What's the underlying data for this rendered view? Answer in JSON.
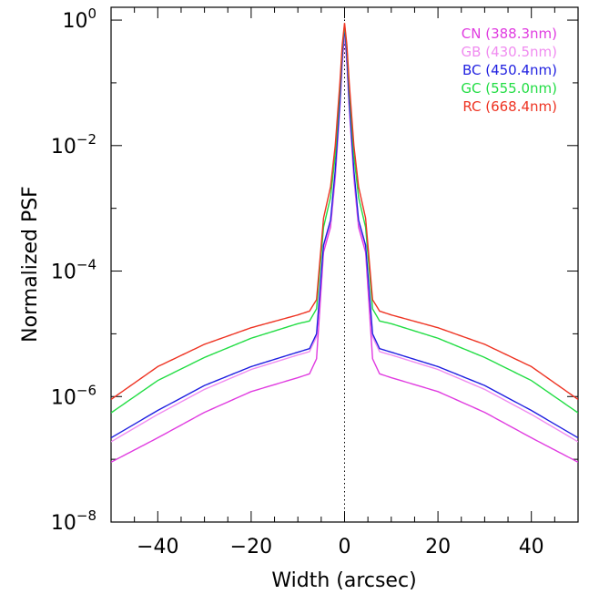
{
  "chart_data": {
    "type": "line",
    "title": "",
    "xlabel": "Width (arcsec)",
    "ylabel": "Normalized PSF",
    "xlim": [
      -50,
      50
    ],
    "ylim": [
      1e-08,
      1.6
    ],
    "yscale": "log",
    "grid": false,
    "legend_position": "top-right",
    "x_ticks": [
      -40,
      -20,
      0,
      20,
      40
    ],
    "x_tick_labels": [
      "−40",
      "−20",
      "0",
      "20",
      "40"
    ],
    "y_ticks": [
      1e-08,
      1e-06,
      0.0001,
      0.01,
      1
    ],
    "y_tick_labels": [
      {
        "base": "10",
        "exp": "−8"
      },
      {
        "base": "10",
        "exp": "−6"
      },
      {
        "base": "10",
        "exp": "−4"
      },
      {
        "base": "10",
        "exp": "−2"
      },
      {
        "base": "10",
        "exp": "0"
      }
    ],
    "center_line": {
      "x": 0,
      "style": "dotted"
    },
    "series": [
      {
        "name": "CN (388.3nm)",
        "color": "#e03ce0",
        "x": [
          -50,
          -40,
          -30,
          -20,
          -10,
          -7.5,
          -6,
          -4.5,
          -3,
          -2,
          -1,
          -0.5,
          0,
          0.5,
          1,
          2,
          3,
          4.5,
          6,
          7.5,
          10,
          20,
          30,
          40,
          50
        ],
        "y": [
          9e-08,
          2.2e-07,
          5.6e-07,
          1.2e-06,
          2e-06,
          2.3e-06,
          4e-06,
          0.0002,
          0.0005,
          0.003,
          0.04,
          0.2,
          0.65,
          0.2,
          0.04,
          0.003,
          0.0005,
          0.0002,
          4e-06,
          2.3e-06,
          2e-06,
          1.2e-06,
          5.6e-07,
          2.2e-07,
          9e-08
        ]
      },
      {
        "name": "GB (430.5nm)",
        "color": "#f08cf0",
        "x": [
          -50,
          -40,
          -30,
          -20,
          -10,
          -7.5,
          -6,
          -4.5,
          -3,
          -2,
          -1,
          -0.5,
          0,
          0.5,
          1,
          2,
          3,
          4.5,
          6,
          7.5,
          10,
          20,
          30,
          40,
          50
        ],
        "y": [
          1.9e-07,
          5.2e-07,
          1.3e-06,
          2.7e-06,
          4.6e-06,
          5.2e-06,
          9e-06,
          0.00024,
          0.0006,
          0.0035,
          0.045,
          0.22,
          0.7,
          0.22,
          0.045,
          0.0035,
          0.0006,
          0.00024,
          9e-06,
          5.2e-06,
          4.6e-06,
          2.7e-06,
          1.3e-06,
          5.2e-07,
          1.9e-07
        ]
      },
      {
        "name": "BC (450.4nm)",
        "color": "#1f1fe0",
        "x": [
          -50,
          -40,
          -30,
          -20,
          -10,
          -7.5,
          -6,
          -4.5,
          -3,
          -2,
          -1,
          -0.5,
          0,
          0.5,
          1,
          2,
          3,
          4.5,
          6,
          7.5,
          10,
          20,
          30,
          40,
          50
        ],
        "y": [
          2.2e-07,
          6e-07,
          1.5e-06,
          3e-06,
          5.1e-06,
          5.8e-06,
          1e-05,
          0.00026,
          0.00065,
          0.004,
          0.05,
          0.25,
          0.8,
          0.25,
          0.05,
          0.004,
          0.00065,
          0.00026,
          1e-05,
          5.8e-06,
          5.1e-06,
          3e-06,
          1.5e-06,
          6e-07,
          2.2e-07
        ]
      },
      {
        "name": "GC (555.0nm)",
        "color": "#22dd44",
        "x": [
          -50,
          -40,
          -30,
          -20,
          -10,
          -7.5,
          -6,
          -4.5,
          -3,
          -2,
          -1,
          -0.5,
          0,
          0.5,
          1,
          2,
          3,
          4.5,
          6,
          7.5,
          10,
          20,
          30,
          40,
          50
        ],
        "y": [
          5.5e-07,
          1.8e-06,
          4.2e-06,
          8.5e-06,
          1.45e-05,
          1.6e-05,
          2.5e-05,
          0.0005,
          0.0015,
          0.007,
          0.08,
          0.35,
          0.85,
          0.35,
          0.08,
          0.007,
          0.0015,
          0.0005,
          2.5e-05,
          1.6e-05,
          1.45e-05,
          8.5e-06,
          4.2e-06,
          1.8e-06,
          5.5e-07
        ]
      },
      {
        "name": "RC (668.4nm)",
        "color": "#ee3322",
        "x": [
          -50,
          -40,
          -30,
          -20,
          -10,
          -7.5,
          -6,
          -4.5,
          -3,
          -2,
          -1,
          -0.5,
          0,
          0.5,
          1,
          2,
          3,
          4.5,
          6,
          7.5,
          10,
          20,
          30,
          40,
          50
        ],
        "y": [
          9e-07,
          3e-06,
          6.8e-06,
          1.25e-05,
          2e-05,
          2.3e-05,
          3.5e-05,
          0.0007,
          0.0022,
          0.01,
          0.1,
          0.4,
          0.9,
          0.4,
          0.1,
          0.01,
          0.0022,
          0.0007,
          3.5e-05,
          2.3e-05,
          2e-05,
          1.25e-05,
          6.8e-06,
          3e-06,
          9e-07
        ]
      }
    ]
  }
}
